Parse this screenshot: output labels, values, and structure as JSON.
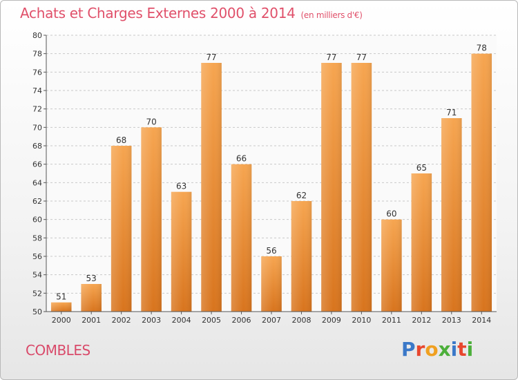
{
  "title": "Achats et Charges Externes 2000 à 2014",
  "subtitle": "(en milliers d'€)",
  "town": "COMBLES",
  "logo_text": "Proxiti",
  "colors": {
    "bar_top": "#f6a550",
    "bar_bottom": "#d8741d",
    "title": "#e0506a",
    "grid": "#c8c8c8"
  },
  "chart_data": {
    "type": "bar",
    "categories": [
      "2000",
      "2001",
      "2002",
      "2003",
      "2004",
      "2005",
      "2006",
      "2007",
      "2008",
      "2009",
      "2010",
      "2011",
      "2012",
      "2013",
      "2014"
    ],
    "values": [
      51,
      53,
      68,
      70,
      63,
      77,
      66,
      56,
      62,
      77,
      77,
      60,
      65,
      71,
      78
    ],
    "ylim": [
      50,
      80
    ],
    "yticks": [
      50,
      52,
      54,
      56,
      58,
      60,
      62,
      64,
      66,
      68,
      70,
      72,
      74,
      76,
      78,
      80
    ],
    "grid": true,
    "data_labels": true
  }
}
